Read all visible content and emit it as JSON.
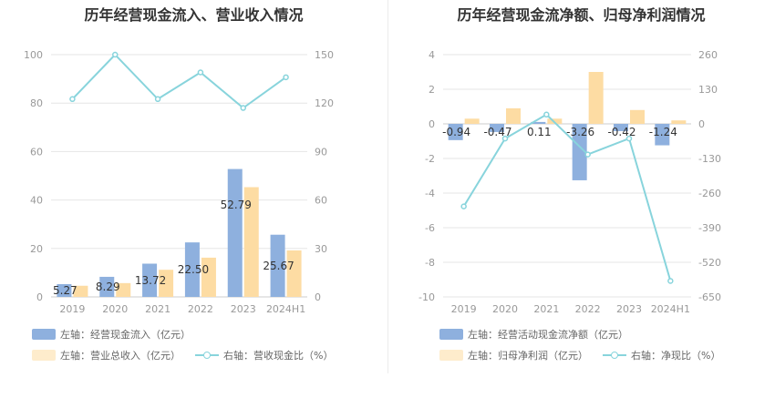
{
  "charts": [
    {
      "title": "历年经营现金流入、营业收入情况",
      "chart_data": {
        "type": "bar",
        "categories": [
          "2019",
          "2020",
          "2021",
          "2022",
          "2023",
          "2024H1"
        ],
        "left_axis": {
          "ylim": [
            0,
            100
          ],
          "ticks": [
            0,
            20,
            40,
            60,
            80,
            100
          ]
        },
        "right_axis": {
          "ylim": [
            0,
            150
          ],
          "ticks": [
            0,
            30,
            60,
            90,
            120,
            150
          ]
        },
        "series": [
          {
            "name": "左轴：经营现金流入（亿元）",
            "kind": "bar",
            "axis": "left",
            "color": "#8eb0de",
            "values": [
              5.27,
              8.29,
              13.72,
              22.5,
              52.79,
              25.67
            ],
            "labels": [
              "5.27",
              "8.29",
              "13.72",
              "22.50",
              "52.79",
              "25.67"
            ]
          },
          {
            "name": "左轴：营业总收入（亿元）",
            "kind": "bar",
            "axis": "left",
            "color": "#fddca3",
            "values": [
              4.6,
              5.7,
              11.2,
              16.2,
              45.3,
              19.2
            ]
          },
          {
            "name": "右轴：营收现金比（%）",
            "kind": "line",
            "axis": "right",
            "color": "#88d4dc",
            "values": [
              122.5,
              150,
              122.5,
              139,
              117,
              136
            ]
          }
        ],
        "grid": true,
        "legend_position": "bottom"
      }
    },
    {
      "title": "历年经营现金流净额、归母净利润情况",
      "chart_data": {
        "type": "bar",
        "categories": [
          "2019",
          "2020",
          "2021",
          "2022",
          "2023",
          "2024H1"
        ],
        "left_axis": {
          "ylim": [
            -10,
            4
          ],
          "ticks": [
            -10,
            -8,
            -6,
            -4,
            -2,
            0,
            2,
            4
          ]
        },
        "right_axis": {
          "ylim": [
            -650,
            260
          ],
          "ticks": [
            -650,
            -520,
            -390,
            -260,
            -130,
            0,
            130,
            260
          ]
        },
        "series": [
          {
            "name": "左轴：经营活动现金流净额（亿元）",
            "kind": "bar",
            "axis": "left",
            "color": "#8eb0de",
            "values": [
              -0.94,
              -0.47,
              0.11,
              -3.26,
              -0.42,
              -1.24
            ],
            "labels": [
              "-0.94",
              "-0.47",
              "0.11",
              "-3.26",
              "-0.42",
              "-1.24"
            ]
          },
          {
            "name": "左轴：归母净利润（亿元）",
            "kind": "bar",
            "axis": "left",
            "color": "#fddca3",
            "values": [
              0.3,
              0.9,
              0.3,
              3.0,
              0.8,
              0.2
            ]
          },
          {
            "name": "右轴：净现比（%）",
            "kind": "line",
            "axis": "right",
            "color": "#88d4dc",
            "values": [
              -310,
              -55,
              35,
              -115,
              -55,
              -590
            ]
          }
        ],
        "grid": true,
        "legend_position": "bottom"
      }
    }
  ]
}
